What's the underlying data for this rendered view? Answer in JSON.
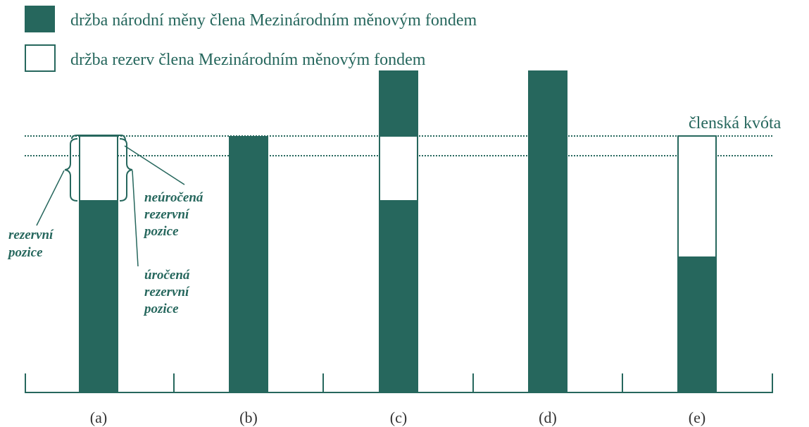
{
  "legend": {
    "items": [
      {
        "label": "držba národní měny člena Mezinárodním měnovým fondem"
      },
      {
        "label": "držba rezerv člena Mezinárodním měnovým fondem"
      }
    ]
  },
  "quota_label": "členská kvóta",
  "annotations": {
    "unremunerated": [
      "neúročená",
      "rezervní",
      "pozice"
    ],
    "reserve": [
      "rezervní",
      "pozice"
    ],
    "remunerated": [
      "úročená",
      "rezervní",
      "pozice"
    ]
  },
  "panels": [
    "(a)",
    "(b)",
    "(c)",
    "(d)",
    "(e)"
  ]
}
